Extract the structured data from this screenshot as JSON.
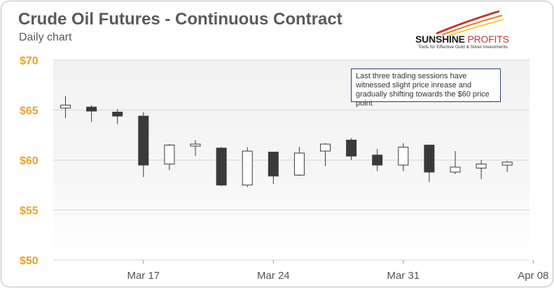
{
  "logo": {
    "brand_main": "SUNSHINE",
    "brand_accent": "PROFITS",
    "tagline": "Tools for Effective Gold & Silver Investments"
  },
  "chart_data": {
    "type": "candlestick",
    "title": "Crude Oil Futures - Continuous Contract",
    "subtitle": "Daily chart",
    "xlabel": "",
    "ylabel": "",
    "ylim": [
      50,
      70
    ],
    "yticks": [
      {
        "value": 70,
        "label": "$70"
      },
      {
        "value": 65,
        "label": "$65"
      },
      {
        "value": 60,
        "label": "$60"
      },
      {
        "value": 55,
        "label": "$55"
      },
      {
        "value": 50,
        "label": "$50"
      }
    ],
    "xticks": [
      {
        "index": 3,
        "label": "Mar 17"
      },
      {
        "index": 8,
        "label": "Mar 24"
      },
      {
        "index": 13,
        "label": "Mar 31"
      },
      {
        "index": 18,
        "label": "Apr 08"
      }
    ],
    "grid": true,
    "series": [
      {
        "open": 65.2,
        "high": 66.4,
        "low": 64.2,
        "close": 65.5
      },
      {
        "open": 65.3,
        "high": 65.5,
        "low": 63.8,
        "close": 64.9
      },
      {
        "open": 64.8,
        "high": 65.1,
        "low": 63.6,
        "close": 64.4
      },
      {
        "open": 64.4,
        "high": 64.8,
        "low": 58.3,
        "close": 59.5
      },
      {
        "open": 59.6,
        "high": 61.6,
        "low": 59.0,
        "close": 61.5
      },
      {
        "open": 61.4,
        "high": 62.0,
        "low": 60.4,
        "close": 61.6
      },
      {
        "open": 61.2,
        "high": 61.3,
        "low": 57.4,
        "close": 57.5
      },
      {
        "open": 57.5,
        "high": 61.3,
        "low": 57.3,
        "close": 60.9
      },
      {
        "open": 60.8,
        "high": 60.8,
        "low": 57.6,
        "close": 58.4
      },
      {
        "open": 58.5,
        "high": 61.3,
        "low": 58.4,
        "close": 60.7
      },
      {
        "open": 60.9,
        "high": 61.7,
        "low": 59.4,
        "close": 61.6
      },
      {
        "open": 62.0,
        "high": 62.2,
        "low": 60.0,
        "close": 60.4
      },
      {
        "open": 60.5,
        "high": 61.1,
        "low": 58.9,
        "close": 59.5
      },
      {
        "open": 59.5,
        "high": 61.7,
        "low": 58.9,
        "close": 61.3
      },
      {
        "open": 61.5,
        "high": 61.5,
        "low": 57.8,
        "close": 58.8
      },
      {
        "open": 58.8,
        "high": 60.9,
        "low": 58.6,
        "close": 59.3
      },
      {
        "open": 59.2,
        "high": 60.0,
        "low": 58.1,
        "close": 59.6
      },
      {
        "open": 59.5,
        "high": 59.9,
        "low": 58.8,
        "close": 59.8
      }
    ],
    "annotations": [
      {
        "text": "Last three trading sessions have witnessed slight price inrease and gradually shifting towards the $60 price point"
      }
    ],
    "colors": {
      "up_body": "#ffffff",
      "down_body": "#3a3a3a",
      "wick": "#3a3a3a",
      "ytick": "#e3a52c",
      "plot_bg_top": "#f3f3f3",
      "plot_bg_bottom": "#ffffff"
    }
  }
}
